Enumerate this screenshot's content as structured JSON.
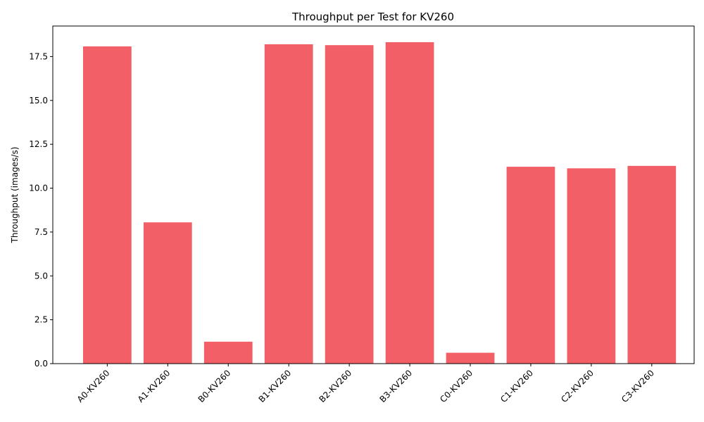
{
  "chart_data": {
    "type": "bar",
    "title": "Throughput per Test for KV260",
    "xlabel": "",
    "ylabel": "Throughput (images/s)",
    "categories": [
      "A0-KV260",
      "A1-KV260",
      "B0-KV260",
      "B1-KV260",
      "B2-KV260",
      "B3-KV260",
      "C0-KV260",
      "C1-KV260",
      "C2-KV260",
      "C3-KV260"
    ],
    "values": [
      18.08,
      8.05,
      1.25,
      18.2,
      18.15,
      18.32,
      0.62,
      11.22,
      11.13,
      11.27
    ],
    "ylim": [
      0,
      19.24
    ],
    "yticks": [
      "0.0",
      "2.5",
      "5.0",
      "7.5",
      "10.0",
      "12.5",
      "15.0",
      "17.5"
    ],
    "bar_color": "#f25f66",
    "grid": false,
    "legend": "none"
  }
}
